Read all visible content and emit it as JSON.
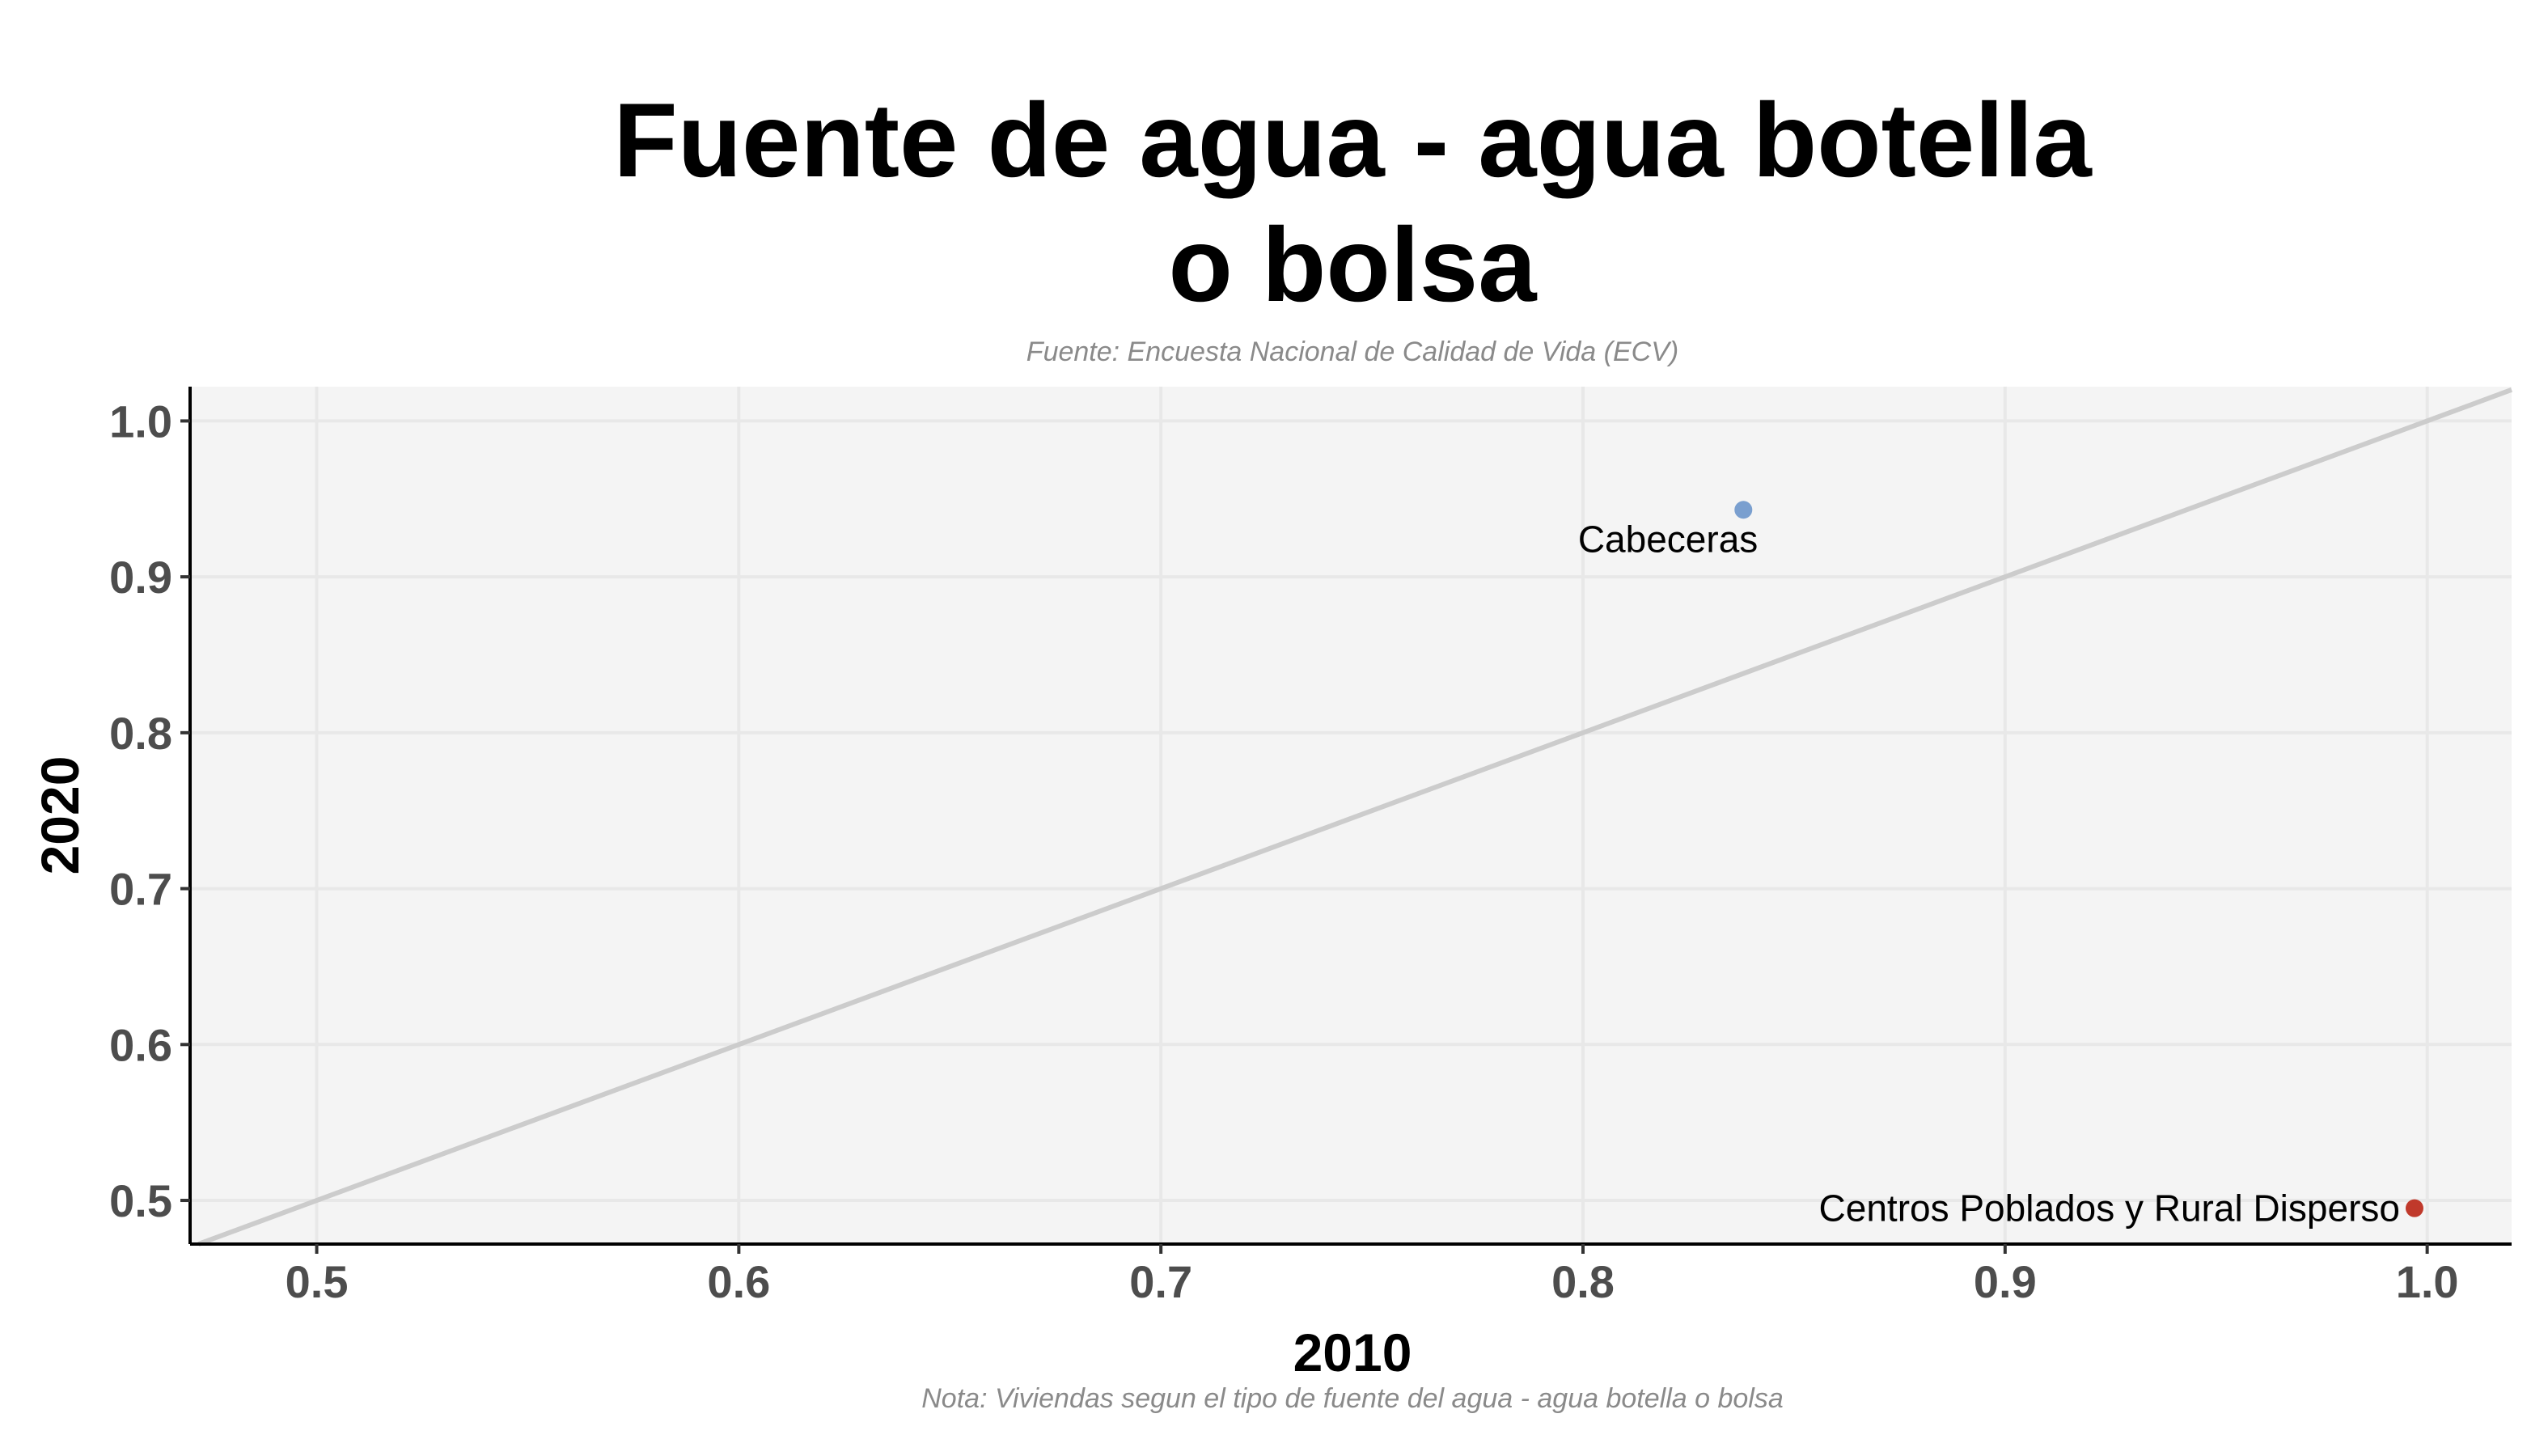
{
  "chart_data": {
    "type": "scatter",
    "title": "Fuente de agua - agua botella o bolsa",
    "title_lines": [
      "Fuente de agua - agua botella",
      "o bolsa"
    ],
    "subtitle": "Fuente: Encuesta Nacional de Calidad de Vida (ECV)",
    "caption": "Nota: Viviendas segun el tipo de fuente del agua - agua botella o bolsa",
    "xlabel": "2010",
    "ylabel": "2020",
    "xlim": [
      0.47,
      1.02
    ],
    "ylim": [
      0.472,
      1.022
    ],
    "xticks": [
      0.5,
      0.6,
      0.7,
      0.8,
      0.9,
      1.0
    ],
    "yticks": [
      0.5,
      0.6,
      0.7,
      0.8,
      0.9,
      1.0
    ],
    "xtick_labels": [
      "0.5",
      "0.6",
      "0.7",
      "0.8",
      "0.9",
      "1.0"
    ],
    "ytick_labels": [
      "0.5",
      "0.6",
      "0.7",
      "0.8",
      "0.9",
      "1.0"
    ],
    "grid": true,
    "reference_line": "y = x",
    "points": [
      {
        "label": "Cabeceras",
        "x": 0.838,
        "y": 0.943,
        "color": "#7a9fcf"
      },
      {
        "label": "Centros Poblados y Rural Disperso",
        "x": 0.997,
        "y": 0.495,
        "color": "#c0392b"
      }
    ],
    "colors": {
      "panel_background": "#f4f4f4",
      "grid": "#e8e8e8",
      "reference_line": "#cccccc",
      "axis_line": "#000000"
    }
  }
}
